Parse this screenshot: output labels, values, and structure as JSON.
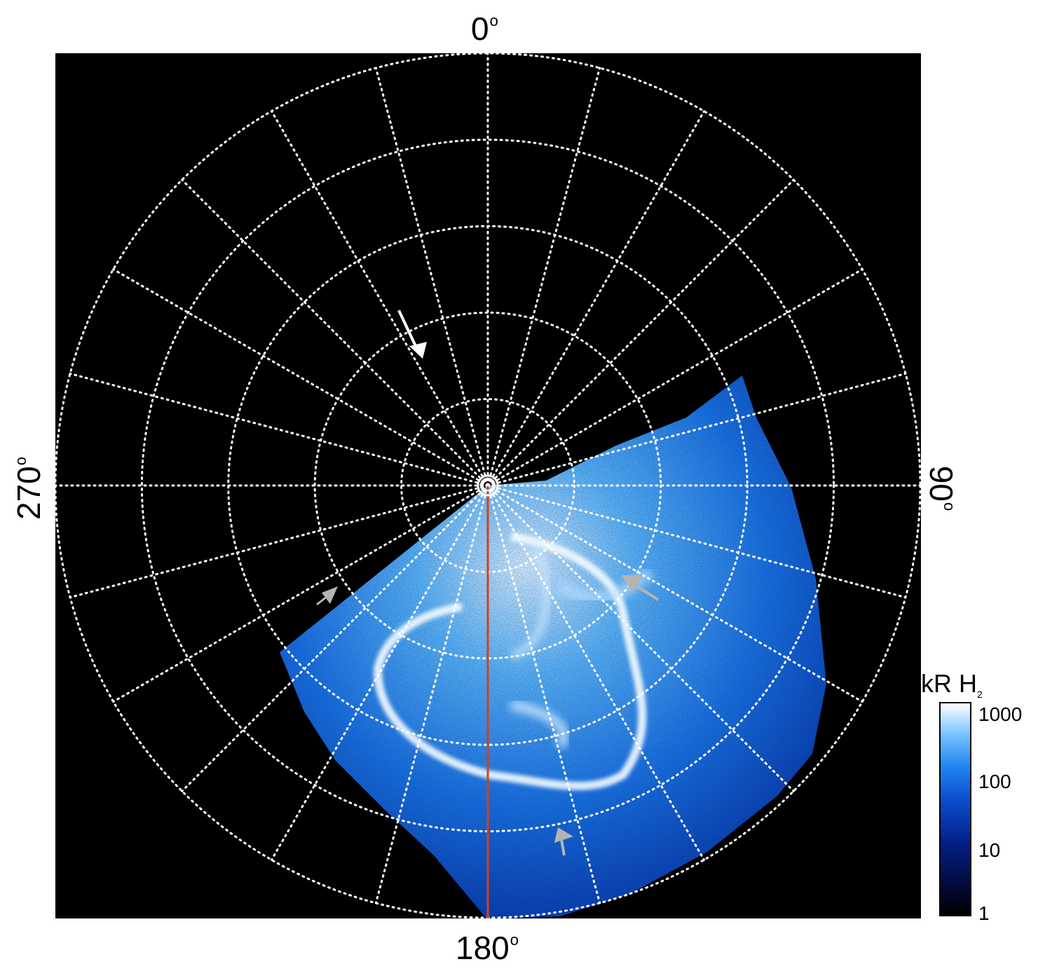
{
  "axis_labels": {
    "top": "0",
    "right": "90",
    "bottom": "180",
    "left": "270",
    "degree_symbol": "o"
  },
  "colorbar": {
    "title": "kR H",
    "title_subscript": "2",
    "ticks": [
      "1000",
      "100",
      "10",
      "1"
    ],
    "scale": "log",
    "range": [
      1,
      1000
    ],
    "colors": [
      "#000000",
      "#03218a",
      "#1f86f0",
      "#ffffff"
    ]
  },
  "grid": {
    "style": "dotted",
    "color": "#ffffff",
    "meridian_spacing_deg": 15,
    "latitude_circles": 5
  },
  "central_meridian_color": "#d2401e",
  "background_color": "#000000",
  "annotations": {
    "arrows": [
      {
        "color": "#ffffff",
        "name": "white-arrow"
      },
      {
        "color": "#b4b4b4",
        "name": "grey-arrow-left"
      },
      {
        "color": "#b4b4b4",
        "name": "grey-arrow-right"
      },
      {
        "color": "#b4b4b4",
        "name": "grey-arrow-bottom"
      }
    ]
  }
}
